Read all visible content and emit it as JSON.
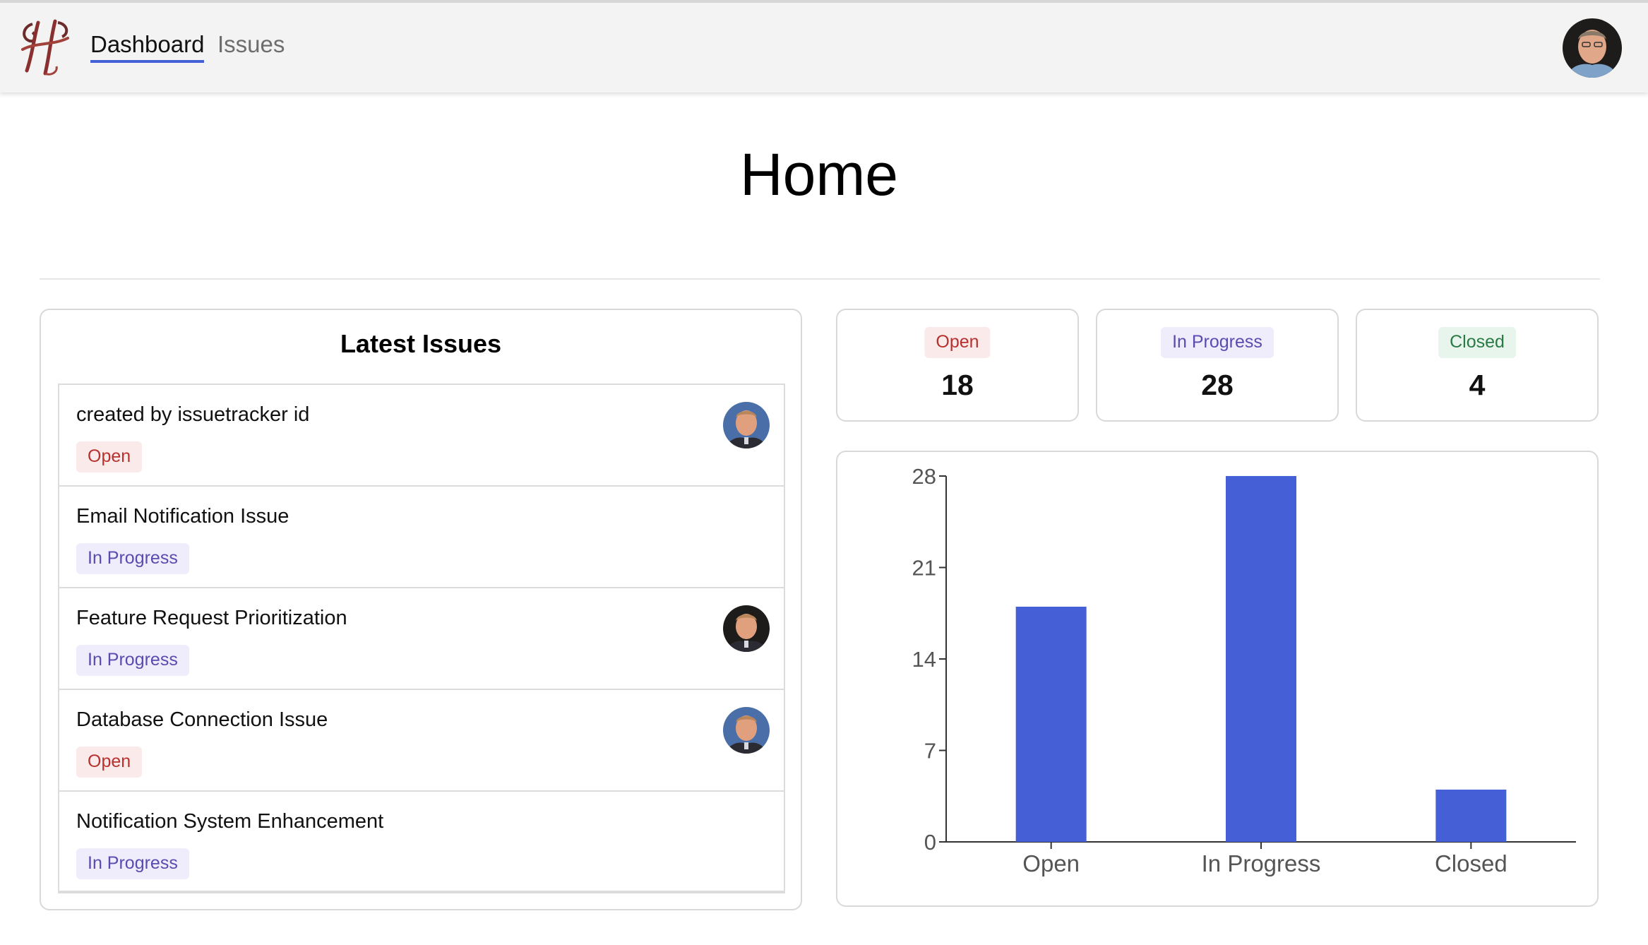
{
  "nav": {
    "logo_icon": "issuetracker-logo-icon",
    "links": [
      {
        "label": "Dashboard",
        "active": true
      },
      {
        "label": "Issues",
        "active": false
      }
    ],
    "user_avatar": "user-avatar"
  },
  "page": {
    "title": "Home"
  },
  "latest_issues": {
    "title": "Latest Issues",
    "items": [
      {
        "title": "created by issuetracker id",
        "status": "Open",
        "has_avatar": true
      },
      {
        "title": "Email Notification Issue",
        "status": "In Progress",
        "has_avatar": false
      },
      {
        "title": "Feature Request Prioritization",
        "status": "In Progress",
        "has_avatar": true
      },
      {
        "title": "Database Connection Issue",
        "status": "Open",
        "has_avatar": true
      },
      {
        "title": "Notification System Enhancement",
        "status": "In Progress",
        "has_avatar": false
      }
    ]
  },
  "stats": [
    {
      "label": "Open",
      "count": "18",
      "color": "#b7312e",
      "bg": "#fbeaea"
    },
    {
      "label": "In Progress",
      "count": "28",
      "color": "#5a4bb1",
      "bg": "#efedfc"
    },
    {
      "label": "Closed",
      "count": "4",
      "color": "#2a7a44",
      "bg": "#e8f5ec"
    }
  ],
  "chart_data": {
    "type": "bar",
    "categories": [
      "Open",
      "In Progress",
      "Closed"
    ],
    "values": [
      18,
      28,
      4
    ],
    "yticks": [
      0,
      7,
      14,
      21,
      28
    ],
    "ylim": [
      0,
      28
    ],
    "bar_color": "#4560d6",
    "title": "",
    "xlabel": "",
    "ylabel": "",
    "grid": false
  }
}
